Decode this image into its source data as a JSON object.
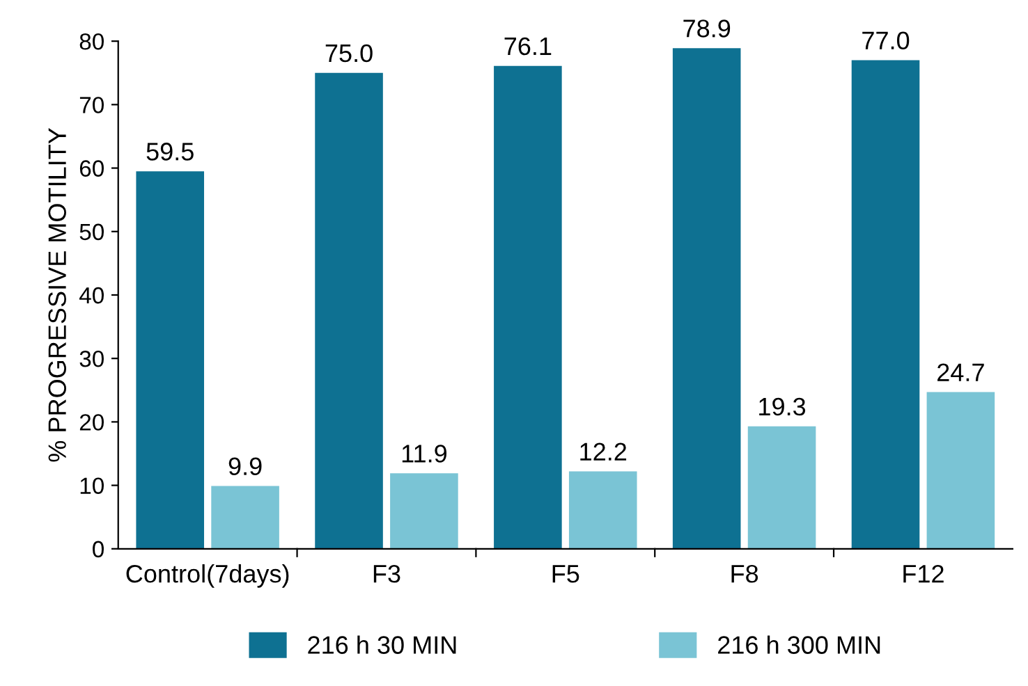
{
  "chart_data": {
    "type": "bar",
    "ylabel": "% PROGRESSIVE MOTILITY",
    "categories": [
      "Control(7days)",
      "F3",
      "F5",
      "F8",
      "F12"
    ],
    "series": [
      {
        "name": "216 h 30 MIN",
        "color": "#0e7192",
        "values": [
          59.5,
          75.0,
          76.1,
          78.9,
          77.0
        ],
        "value_labels": [
          "59.5",
          "75.0",
          "76.1",
          "78.9",
          "77.0"
        ]
      },
      {
        "name": "216 h 300 MIN",
        "color": "#7ac4d5",
        "values": [
          9.9,
          11.9,
          12.2,
          19.3,
          24.7
        ],
        "value_labels": [
          "9.9",
          "11.9",
          "12.2",
          "19.3",
          "24.7"
        ]
      }
    ],
    "ylim": [
      0,
      80
    ],
    "yticks": [
      0,
      10,
      20,
      30,
      40,
      50,
      60,
      70,
      80
    ],
    "grid": false,
    "legend": "bottom"
  }
}
